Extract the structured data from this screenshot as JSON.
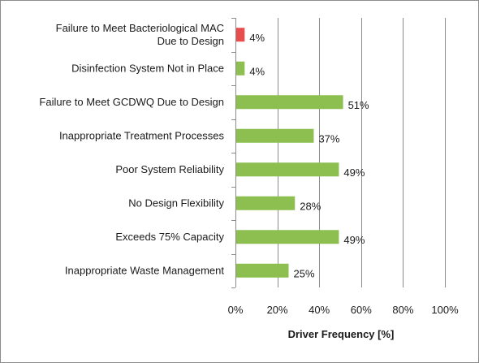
{
  "chart_data": {
    "type": "bar",
    "orientation": "horizontal",
    "categories": [
      [
        "Failure to Meet Bacteriological MAC",
        "Due to Design"
      ],
      [
        "Disinfection System  Not in Place"
      ],
      [
        "Failure to Meet GCDWQ Due to Design"
      ],
      [
        "Inappropriate Treatment Processes"
      ],
      [
        "Poor System Reliability"
      ],
      [
        "No Design Flexibility"
      ],
      [
        "Exceeds 75% Capacity"
      ],
      [
        "Inappropriate Waste Management"
      ]
    ],
    "values": [
      4,
      4,
      51,
      37,
      49,
      28,
      49,
      25
    ],
    "value_labels": [
      "4%",
      "4%",
      "51%",
      "37%",
      "49%",
      "28%",
      "49%",
      "25%"
    ],
    "bar_colors": [
      "#e84c4c",
      "#8cbf4f",
      "#8cbf4f",
      "#8cbf4f",
      "#8cbf4f",
      "#8cbf4f",
      "#8cbf4f",
      "#8cbf4f"
    ],
    "xlim": [
      0,
      100
    ],
    "xticks": [
      0,
      20,
      40,
      60,
      80,
      100
    ],
    "xtick_labels": [
      "0%",
      "20%",
      "40%",
      "60%",
      "80%",
      "100%"
    ],
    "xlabel": "Driver Frequency [%]",
    "ylabel": "",
    "title": "",
    "grid": "vertical",
    "legend": "none",
    "colors": {
      "grid": "#8c8c8c",
      "axis": "#8c8c8c",
      "text": "#1a1a1a",
      "highlight": "#e84c4c",
      "bar": "#8cbf4f"
    }
  }
}
